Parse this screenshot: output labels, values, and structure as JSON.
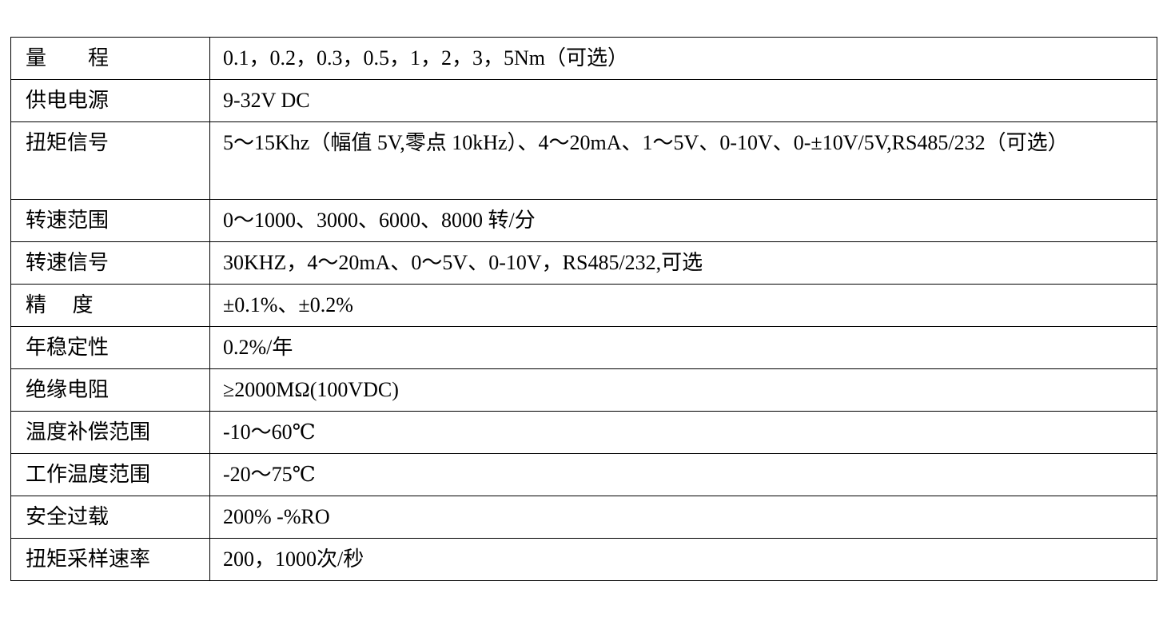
{
  "rows": [
    {
      "label": "量　　程",
      "value": "0.1，0.2，0.3，0.5，1，2，3，5Nm（可选）"
    },
    {
      "label": "供电电源",
      "value": "9-32V DC"
    },
    {
      "label": "扭矩信号",
      "value": "5～15Khz（幅值 5V,零点 10kHz）、4～20mA、1～5V、0-10V、0-±10V/5V,RS485/232（可选）"
    },
    {
      "label": "转速范围",
      "value": "0～1000、3000、6000、8000 转/分"
    },
    {
      "label": "转速信号",
      "value": "30KHZ，4～20mA、0～5V、0-10V，RS485/232,可选"
    },
    {
      "label": "精　 度",
      "value": "±0.1%、±0.2%"
    },
    {
      "label": "年稳定性",
      "value": "0.2%/年"
    },
    {
      "label": "绝缘电阻",
      "value": "≥2000MΩ(100VDC)"
    },
    {
      "label": "温度补偿范围",
      "value": "-10～60℃"
    },
    {
      "label": "工作温度范围",
      "value": "-20～75℃"
    },
    {
      "label": "安全过载",
      "value": "200% -%RO"
    },
    {
      "label": "扭矩采样速率",
      "value": "200，1000次/秒"
    }
  ]
}
